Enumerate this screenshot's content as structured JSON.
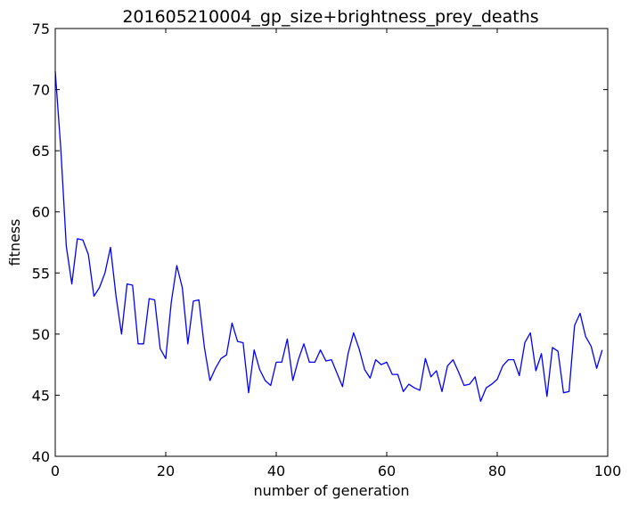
{
  "chart_data": {
    "type": "line",
    "title": "201605210004_gp_size+brightness_prey_deaths",
    "xlabel": "number of generation",
    "ylabel": "fitness",
    "xlim": [
      0,
      100
    ],
    "ylim": [
      40,
      75
    ],
    "x_ticks": [
      0,
      20,
      40,
      60,
      80,
      100
    ],
    "y_ticks": [
      40,
      45,
      50,
      55,
      60,
      65,
      70,
      75
    ],
    "grid": false,
    "line_color": "#0000ff",
    "series": [
      {
        "x": [
          0,
          1,
          2,
          3,
          4,
          5,
          6,
          7,
          8,
          9,
          10,
          11,
          12,
          13,
          14,
          15,
          16,
          17,
          18,
          19,
          20,
          21,
          22,
          23,
          24,
          25,
          26,
          27,
          28,
          29,
          30,
          31,
          32,
          33,
          34,
          35,
          36,
          37,
          38,
          39,
          40,
          41,
          42,
          43,
          44,
          45,
          46,
          47,
          48,
          49,
          50,
          51,
          52,
          53,
          54,
          55,
          56,
          57,
          58,
          59,
          60,
          61,
          62,
          63,
          64,
          65,
          66,
          67,
          68,
          69,
          70,
          71,
          72,
          73,
          74,
          75,
          76,
          77,
          78,
          79,
          80,
          81,
          82,
          83,
          84,
          85,
          86,
          87,
          88,
          89,
          90,
          91,
          92,
          93,
          94,
          95,
          96,
          97,
          98,
          99
        ],
        "values": [
          71.5,
          65.2,
          57.2,
          54.1,
          57.8,
          57.7,
          56.5,
          53.1,
          53.8,
          55.0,
          57.1,
          53.1,
          50.0,
          54.1,
          54.0,
          49.2,
          49.2,
          52.9,
          52.8,
          48.8,
          48.0,
          52.6,
          55.6,
          53.8,
          49.2,
          52.7,
          52.8,
          48.9,
          46.2,
          47.2,
          48.0,
          48.3,
          50.9,
          49.4,
          49.3,
          45.2,
          48.7,
          47.1,
          46.2,
          45.8,
          47.7,
          47.7,
          49.6,
          46.2,
          47.9,
          49.2,
          47.7,
          47.7,
          48.7,
          47.8,
          47.9,
          46.8,
          45.7,
          48.4,
          50.1,
          48.8,
          47.1,
          46.4,
          47.9,
          47.5,
          47.7,
          46.7,
          46.7,
          45.3,
          45.9,
          45.6,
          45.4,
          48.0,
          46.5,
          47.0,
          45.3,
          47.4,
          47.9,
          46.9,
          45.8,
          45.9,
          46.5,
          44.5,
          45.6,
          45.9,
          46.3,
          47.4,
          47.9,
          47.9,
          46.6,
          49.3,
          50.1,
          47.0,
          48.4,
          44.9,
          48.9,
          48.6,
          45.2,
          45.3,
          50.7,
          51.7,
          49.8,
          49.0,
          47.2,
          48.7
        ]
      }
    ]
  }
}
